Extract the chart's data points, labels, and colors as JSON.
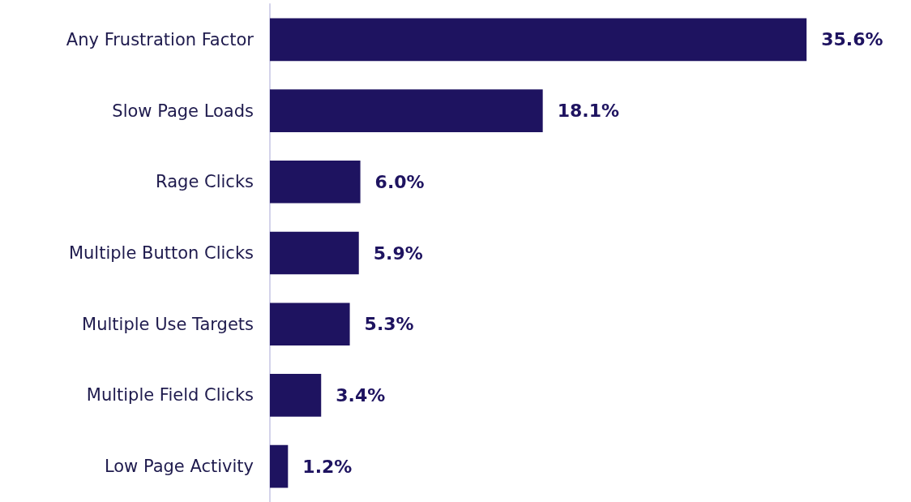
{
  "chart_data": {
    "type": "bar",
    "orientation": "horizontal",
    "categories": [
      "Any Frustration Factor",
      "Slow Page Loads",
      "Rage Clicks",
      "Multiple Button Clicks",
      "Multiple Use Targets",
      "Multiple Field Clicks",
      "Low Page Activity"
    ],
    "values": [
      35.6,
      18.1,
      6.0,
      5.9,
      5.3,
      3.4,
      1.2
    ],
    "value_labels": [
      "35.6%",
      "18.1%",
      "6.0%",
      "5.9%",
      "5.3%",
      "3.4%",
      "1.2%"
    ],
    "color": "#1e1360"
  }
}
